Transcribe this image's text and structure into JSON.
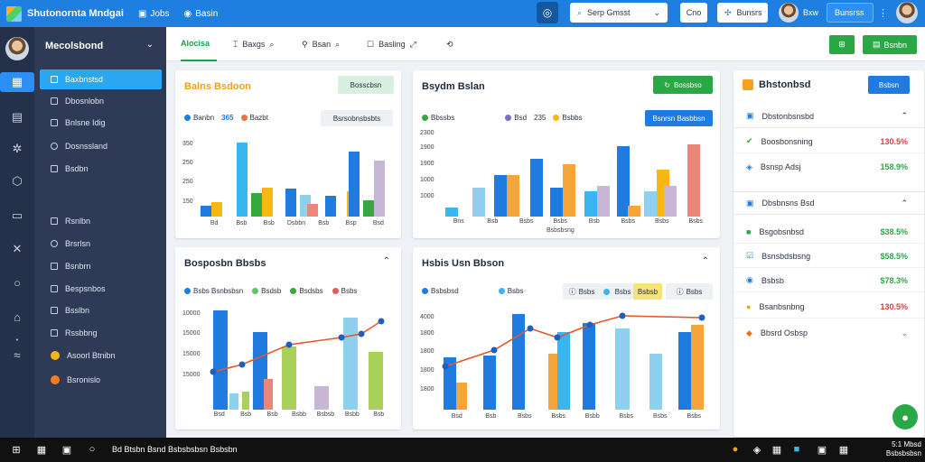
{
  "app": {
    "title": "Shutonornta Mndgai"
  },
  "topnav": [
    {
      "label": "Jobs"
    },
    {
      "label": "Basin"
    }
  ],
  "top_right": {
    "search_value": "Serp Gmsst",
    "ctrl_label": "Cno",
    "btn_label": "Bunsrs",
    "user_label": "Bxw",
    "btn2_label": "Bunsrss"
  },
  "sidebar": {
    "header": "Mecolsbond",
    "items": [
      {
        "label": "Baxbnstsd",
        "active": true
      },
      {
        "label": "Dbosnlobn"
      },
      {
        "label": "Bnlsne Idig"
      },
      {
        "label": "Dosnssland"
      },
      {
        "label": "Bsdbn"
      },
      {
        "label": "Rsnlbn"
      },
      {
        "label": "Brsrlsn"
      },
      {
        "label": "Bsnbrn"
      },
      {
        "label": "Bespsnbos"
      },
      {
        "label": "Bsslbn"
      },
      {
        "label": "Rssbbng"
      },
      {
        "label": "Asoorl Btnibn"
      },
      {
        "label": "Bsronislo"
      }
    ]
  },
  "tabs": [
    {
      "label": "Alocisa"
    },
    {
      "label": "Baxgs"
    },
    {
      "label": "Bsan"
    },
    {
      "label": "Basling"
    }
  ],
  "header_buttons": {
    "btn2": "Bsnbn"
  },
  "card1": {
    "title": "Balns Bsdoon",
    "action": "Bosscbsn",
    "legend": [
      {
        "label": "Banbn",
        "value": "365"
      },
      {
        "label": "Bazbt"
      }
    ],
    "filter": "Bsrsobnsbsbts",
    "yticks": [
      "350",
      "250",
      "250",
      "150"
    ],
    "xlabels": [
      "Bd",
      "Bsb",
      "Bsb",
      "Dsbbn",
      "Bsb",
      "Bsp",
      "Bsd"
    ],
    "colors": {
      "blue": "#1f7be0",
      "cyan": "#38b6ef",
      "yellow": "#f9b715",
      "green": "#37a83a",
      "lav": "#c7b7d4",
      "teal": "#7ec8e3",
      "orange": "#f6a53a"
    }
  },
  "card2": {
    "title": "Bsydm Bslan",
    "action": "Bossbso",
    "legend": [
      {
        "label": "Bbssbs"
      },
      {
        "label": "Bsd"
      },
      {
        "label": "Bsbbs",
        "value": "235"
      }
    ],
    "filter": "Bsnrsn Basbbsn",
    "yticks": [
      "2300",
      "1900",
      "1900",
      "1000",
      "1000"
    ],
    "xlabels": [
      "Bns",
      "Bsb",
      "Bsbs",
      "Bsbs",
      "Bsb",
      "Bsbs",
      "Bsbs",
      "Bsbs"
    ],
    "subxlabel": "Bsbsbsng"
  },
  "card3": {
    "title": "Bosposbn Bbsbs",
    "legend": [
      {
        "label": "Bsbs Bsnbsbsn"
      },
      {
        "label": "Bsdsb"
      },
      {
        "label": "Bsdsbs"
      },
      {
        "label": "Bsbs"
      }
    ],
    "yticks": [
      "10000",
      "15000",
      "15000",
      "15000"
    ],
    "xlabels": [
      "Bsd",
      "Bsb",
      "Bsb",
      "Bsbb",
      "Bsbsb",
      "Bsbb",
      "Bsb"
    ]
  },
  "card4": {
    "title": "Hsbis Usn Bbson",
    "legend": [
      {
        "label": "Bsbsbsd"
      },
      {
        "label": "Bsbs"
      }
    ],
    "filters": [
      "Bsbs",
      "Bsbs",
      "Bsbsb"
    ],
    "yticks": [
      "4000",
      "1800",
      "1800",
      "1800",
      "1800"
    ],
    "xlabels": [
      "Bsd",
      "Bsb",
      "Bsbs",
      "Bsbs",
      "Bsbb",
      "Bsbs",
      "Bsbs",
      "Bsbs"
    ]
  },
  "rightpanel": {
    "title": "Bhstonbsd",
    "btn": "Bsbsn",
    "section1": "Dbstonbsnsbd",
    "rows1": [
      {
        "label": "Boosbonsning",
        "pct": "130.5%",
        "color": "red"
      },
      {
        "label": "Bsnsp Adsj",
        "pct": "158.9%",
        "color": "green"
      }
    ],
    "section2": "Dbsbnsns Bsd",
    "rows2": [
      {
        "label": "Bsgobsnbsd",
        "pct": "$38.5%",
        "color": "green"
      },
      {
        "label": "Bsnsbdsbsng",
        "pct": "$58.5%",
        "color": "green"
      },
      {
        "label": "Bsbsb",
        "pct": "$78.3%",
        "color": "green"
      },
      {
        "label": "Bsanbsnbng",
        "pct": "130.5%",
        "color": "red"
      },
      {
        "label": "Bbsrd Osbsp"
      }
    ]
  },
  "taskbar": {
    "search": "Bd Btsbn Bsnd Bsbsbsbsn Bsbsbn",
    "time": "5:1 Mbsd",
    "date": "Bsbsbsbsn"
  }
}
